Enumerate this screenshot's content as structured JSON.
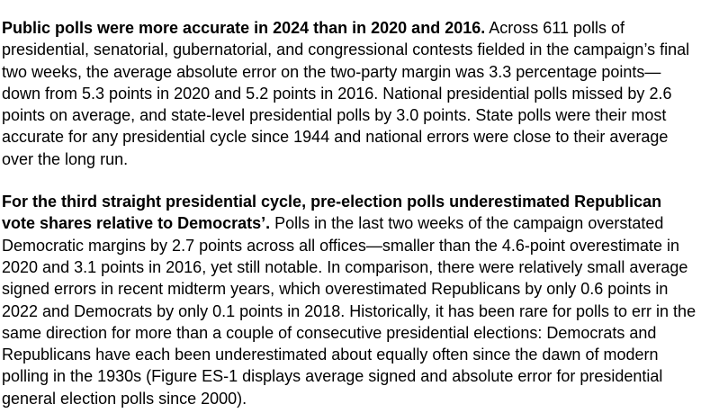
{
  "page": {
    "background_color": "#ffffff",
    "text_color": "#000000"
  },
  "document": {
    "paragraphs": [
      {
        "lead_bold": "Public polls were more accurate in 2024 than in 2020 and 2016.",
        "body": " Across 611 polls of presidential, senatorial, gubernatorial, and congressional contests fielded in the campaign’s final two weeks, the average absolute error on the two-party margin was 3.3 percentage points—down from 5.3 points in 2020 and 5.2 points in 2016. National presidential polls missed by 2.6 points on average, and state-level presidential polls by 3.0 points. State polls were their most accurate for any presidential cycle since 1944 and national errors were close to their average over the long run."
      },
      {
        "lead_bold": "For the third straight presidential cycle, pre-election polls underestimated Republican vote shares relative to Democrats’.",
        "body": " Polls in the last two weeks of the campaign overstated Democratic margins by 2.7 points across all offices—smaller than the 4.6-point overestimate in 2020 and 3.1 points in 2016, yet still notable. In comparison, there were relatively small average signed errors in recent midterm years, which overestimated Republicans by only 0.6 points in 2022 and Democrats by only 0.1 points in 2018. Historically, it has been rare for polls to err in the same direction for more than a couple of consecutive presidential elections: Democrats and Republicans have each been underestimated about equally often since the dawn of modern polling in the 1930s (Figure ES-1 displays average signed and absolute error for presidential general election polls since 2000)."
      }
    ]
  }
}
